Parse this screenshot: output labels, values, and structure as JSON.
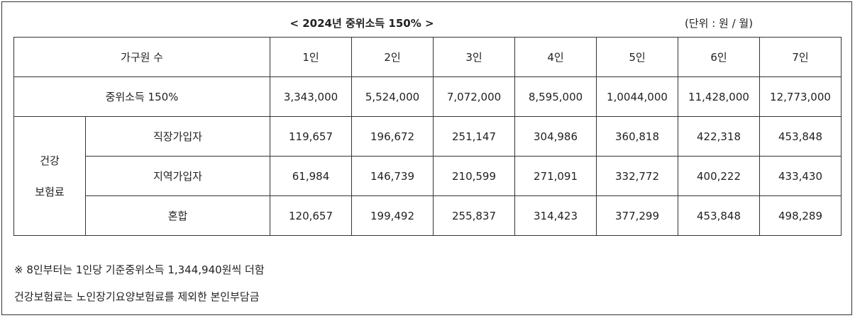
{
  "title": "< 2024년 중위소득 150% >",
  "unit": "(단위 : 원 / 월)",
  "table": {
    "header_label": "가구원 수",
    "columns": [
      "1인",
      "2인",
      "3인",
      "4인",
      "5인",
      "6인",
      "7인"
    ],
    "income_row": {
      "label": "중위소득 150%",
      "values": [
        "3,343,000",
        "5,524,000",
        "7,072,000",
        "8,595,000",
        "1,0044,000",
        "11,428,000",
        "12,773,000"
      ]
    },
    "group_label_line1": "건강",
    "group_label_line2": "보험료",
    "insurance_rows": [
      {
        "label": "직장가입자",
        "values": [
          "119,657",
          "196,672",
          "251,147",
          "304,986",
          "360,818",
          "422,318",
          "453,848"
        ]
      },
      {
        "label": "지역가입자",
        "values": [
          "61,984",
          "146,739",
          "210,599",
          "271,091",
          "332,772",
          "400,222",
          "433,430"
        ]
      },
      {
        "label": "혼합",
        "values": [
          "120,657",
          "199,492",
          "255,837",
          "314,423",
          "377,299",
          "453,848",
          "498,289"
        ]
      }
    ]
  },
  "notes": [
    "※ 8인부터는 1인당 기준중위소득 1,344,940원씩 더함",
    "건강보험료는 노인장기요양보험료를 제외한 본인부담금"
  ]
}
